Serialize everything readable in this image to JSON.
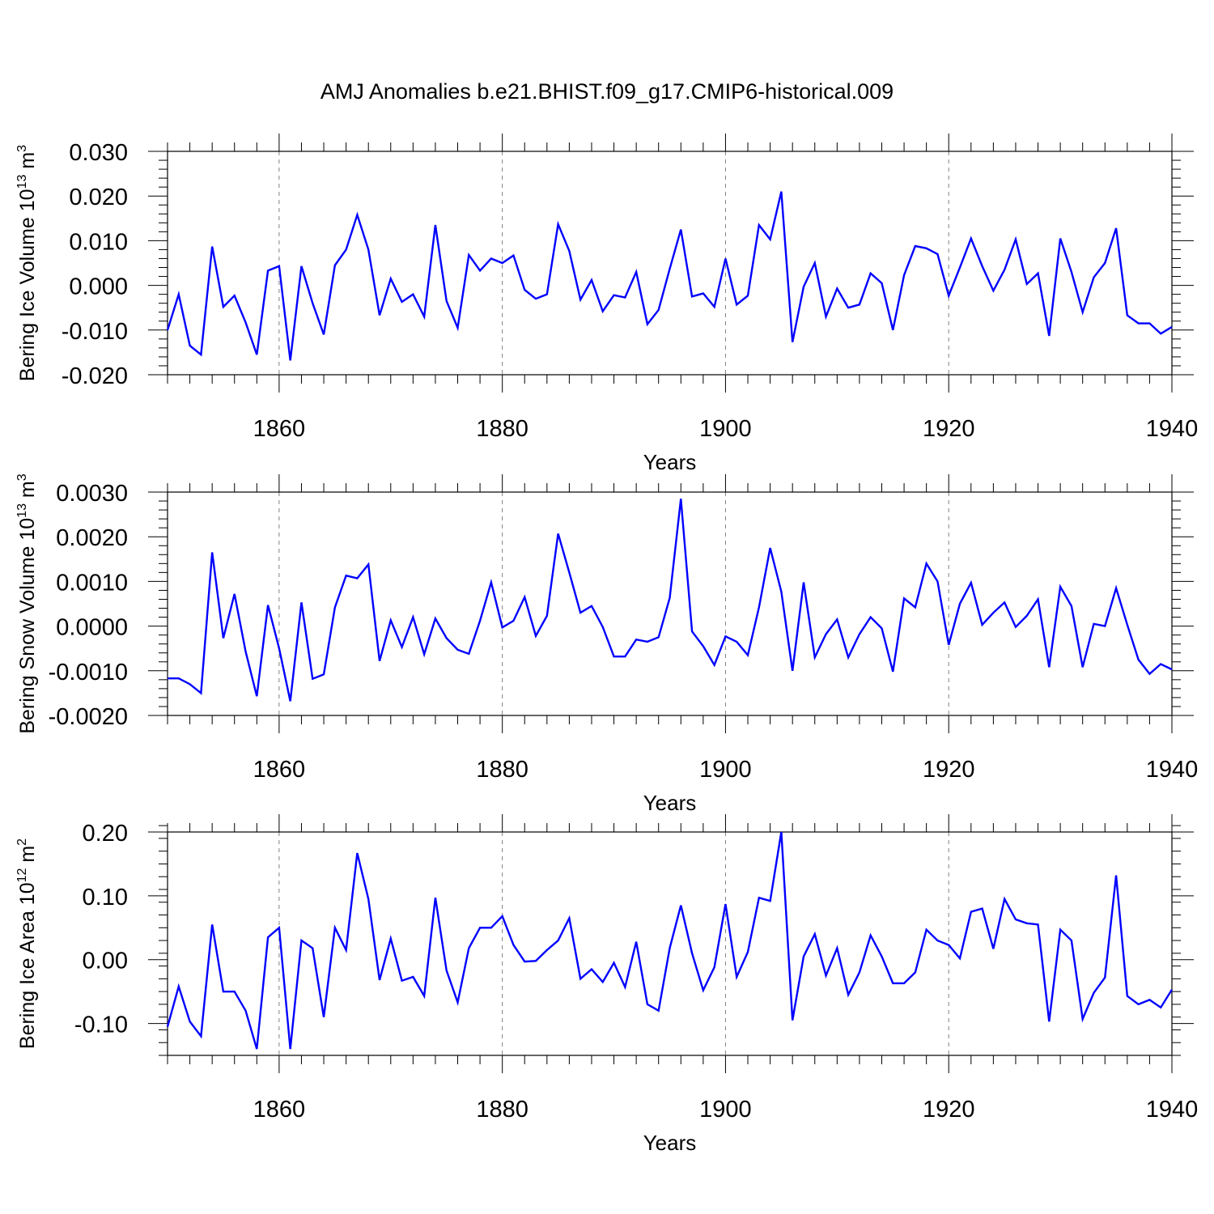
{
  "title": "AMJ Anomalies b.e21.BHIST.f09_g17.CMIP6-historical.009",
  "colors": {
    "line": "#0000ff",
    "axis": "#000000",
    "refline": "#808080"
  },
  "chart_data": [
    {
      "type": "line",
      "series_name": "Bering Ice Volume",
      "ylabel": "Bering Ice Volume 10",
      "ylabel_exp": "13",
      "ylabel_unit": " m",
      "ylabel_unit_exp": "3",
      "xlabel": "Years",
      "xlim": [
        1850,
        1940
      ],
      "ylim": [
        -0.02,
        0.03
      ],
      "yticks": [
        -0.02,
        -0.01,
        0.0,
        0.01,
        0.02,
        0.03
      ],
      "yticklabels": [
        "-0.020",
        "-0.010",
        "0.000",
        "0.010",
        "0.020",
        "0.030"
      ],
      "xticks": [
        1860,
        1880,
        1900,
        1920,
        1940
      ],
      "xticklabels": [
        "1860",
        "1880",
        "1900",
        "1920",
        "1940"
      ],
      "x_start": 1850,
      "values": [
        -0.01,
        -0.002,
        -0.0135,
        -0.0155,
        0.0087,
        -0.0048,
        -0.0023,
        -0.0083,
        -0.0155,
        0.0033,
        0.0043,
        -0.0168,
        0.0043,
        -0.004,
        -0.011,
        0.0045,
        0.008,
        0.0158,
        0.008,
        -0.0067,
        0.0015,
        -0.0037,
        -0.002,
        -0.007,
        0.0135,
        -0.0035,
        -0.0095,
        0.0068,
        0.0033,
        0.006,
        0.005,
        0.0067,
        -0.001,
        -0.003,
        -0.002,
        0.0137,
        0.0077,
        -0.0032,
        0.0012,
        -0.0058,
        -0.0022,
        -0.0027,
        0.003,
        -0.0087,
        -0.0055,
        0.0037,
        0.0125,
        -0.0025,
        -0.0018,
        -0.0048,
        0.006,
        -0.0043,
        -0.0023,
        0.0135,
        0.0103,
        0.021,
        -0.0127,
        -0.0003,
        0.005,
        -0.007,
        -0.0007,
        -0.005,
        -0.0043,
        0.0027,
        0.0005,
        -0.01,
        0.0023,
        0.0088,
        0.0083,
        0.007,
        -0.0023,
        0.004,
        0.0105,
        0.0043,
        -0.0012,
        0.0035,
        0.0103,
        0.0003,
        0.0027,
        -0.0113,
        0.0105,
        0.003,
        -0.006,
        0.0018,
        0.005,
        0.0128,
        -0.0067,
        -0.0085,
        -0.0085,
        -0.0108,
        -0.0093
      ]
    },
    {
      "type": "line",
      "series_name": "Bering Snow Volume",
      "ylabel": "Bering Snow Volume 10",
      "ylabel_exp": "13",
      "ylabel_unit": " m",
      "ylabel_unit_exp": "3",
      "xlabel": "Years",
      "xlim": [
        1850,
        1940
      ],
      "ylim": [
        -0.002,
        0.003
      ],
      "yticks": [
        -0.002,
        -0.001,
        0.0,
        0.001,
        0.002,
        0.003
      ],
      "yticklabels": [
        "-0.0020",
        "-0.0010",
        "0.0000",
        "0.0010",
        "0.0020",
        "0.0030"
      ],
      "xticks": [
        1860,
        1880,
        1900,
        1920,
        1940
      ],
      "xticklabels": [
        "1860",
        "1880",
        "1900",
        "1920",
        "1940"
      ],
      "x_start": 1850,
      "values": [
        -0.00117,
        -0.00117,
        -0.0013,
        -0.0015,
        0.00165,
        -0.00027,
        0.00072,
        -0.00057,
        -0.00157,
        0.00047,
        -0.0005,
        -0.00168,
        0.00053,
        -0.00118,
        -0.00108,
        0.00042,
        0.00113,
        0.00107,
        0.00138,
        -0.00078,
        0.00013,
        -0.00047,
        0.0002,
        -0.00063,
        0.00017,
        -0.00027,
        -0.00053,
        -0.00062,
        0.00012,
        0.00098,
        -3e-05,
        0.00012,
        0.00065,
        -0.00022,
        0.00023,
        0.00207,
        0.0012,
        0.0003,
        0.00045,
        -2e-05,
        -0.00068,
        -0.00068,
        -0.0003,
        -0.00035,
        -0.00025,
        0.00063,
        0.00285,
        -0.00012,
        -0.00045,
        -0.00087,
        -0.00023,
        -0.00035,
        -0.00065,
        0.00042,
        0.00175,
        0.00077,
        -0.001,
        0.00098,
        -0.0007,
        -0.00018,
        0.00015,
        -0.0007,
        -0.00018,
        0.0002,
        -5e-05,
        -0.00102,
        0.00062,
        0.00042,
        0.0014,
        0.001,
        -0.00042,
        0.0005,
        0.00097,
        3e-05,
        0.0003,
        0.00053,
        -2e-05,
        0.00023,
        0.0006,
        -0.00092,
        0.00088,
        0.00045,
        -0.00092,
        5e-05,
        0.0,
        0.00085,
        3e-05,
        -0.00075,
        -0.00107,
        -0.00085,
        -0.00097
      ]
    },
    {
      "type": "line",
      "series_name": "Bering Ice Area",
      "ylabel": "Bering Ice Area 10",
      "ylabel_exp": "12",
      "ylabel_unit": " m",
      "ylabel_unit_exp": "2",
      "xlabel": "Years",
      "xlim": [
        1850,
        1940
      ],
      "ylim": [
        -0.15,
        0.2
      ],
      "yticks": [
        -0.1,
        0.0,
        0.1,
        0.2
      ],
      "yticklabels": [
        "-0.10",
        "0.00",
        "0.10",
        "0.20"
      ],
      "xticks": [
        1860,
        1880,
        1900,
        1920,
        1940
      ],
      "xticklabels": [
        "1860",
        "1880",
        "1900",
        "1920",
        "1940"
      ],
      "x_start": 1850,
      "values": [
        -0.105,
        -0.042,
        -0.097,
        -0.12,
        0.055,
        -0.05,
        -0.05,
        -0.08,
        -0.14,
        0.035,
        0.05,
        -0.14,
        0.03,
        0.018,
        -0.09,
        0.05,
        0.015,
        0.167,
        0.095,
        -0.032,
        0.033,
        -0.033,
        -0.027,
        -0.057,
        0.097,
        -0.017,
        -0.067,
        0.018,
        0.05,
        0.05,
        0.068,
        0.023,
        -0.003,
        -0.002,
        0.015,
        0.03,
        0.065,
        -0.03,
        -0.015,
        -0.035,
        -0.005,
        -0.043,
        0.028,
        -0.07,
        -0.08,
        0.018,
        0.085,
        0.01,
        -0.048,
        -0.012,
        0.087,
        -0.027,
        0.012,
        0.097,
        0.092,
        0.2,
        -0.095,
        0.005,
        0.04,
        -0.025,
        0.018,
        -0.055,
        -0.02,
        0.038,
        0.005,
        -0.037,
        -0.037,
        -0.02,
        0.047,
        0.03,
        0.023,
        0.002,
        0.075,
        0.08,
        0.017,
        0.095,
        0.063,
        0.057,
        0.055,
        -0.097,
        0.047,
        0.03,
        -0.093,
        -0.052,
        -0.028,
        0.132,
        -0.057,
        -0.07,
        -0.063,
        -0.075,
        -0.047
      ]
    }
  ]
}
